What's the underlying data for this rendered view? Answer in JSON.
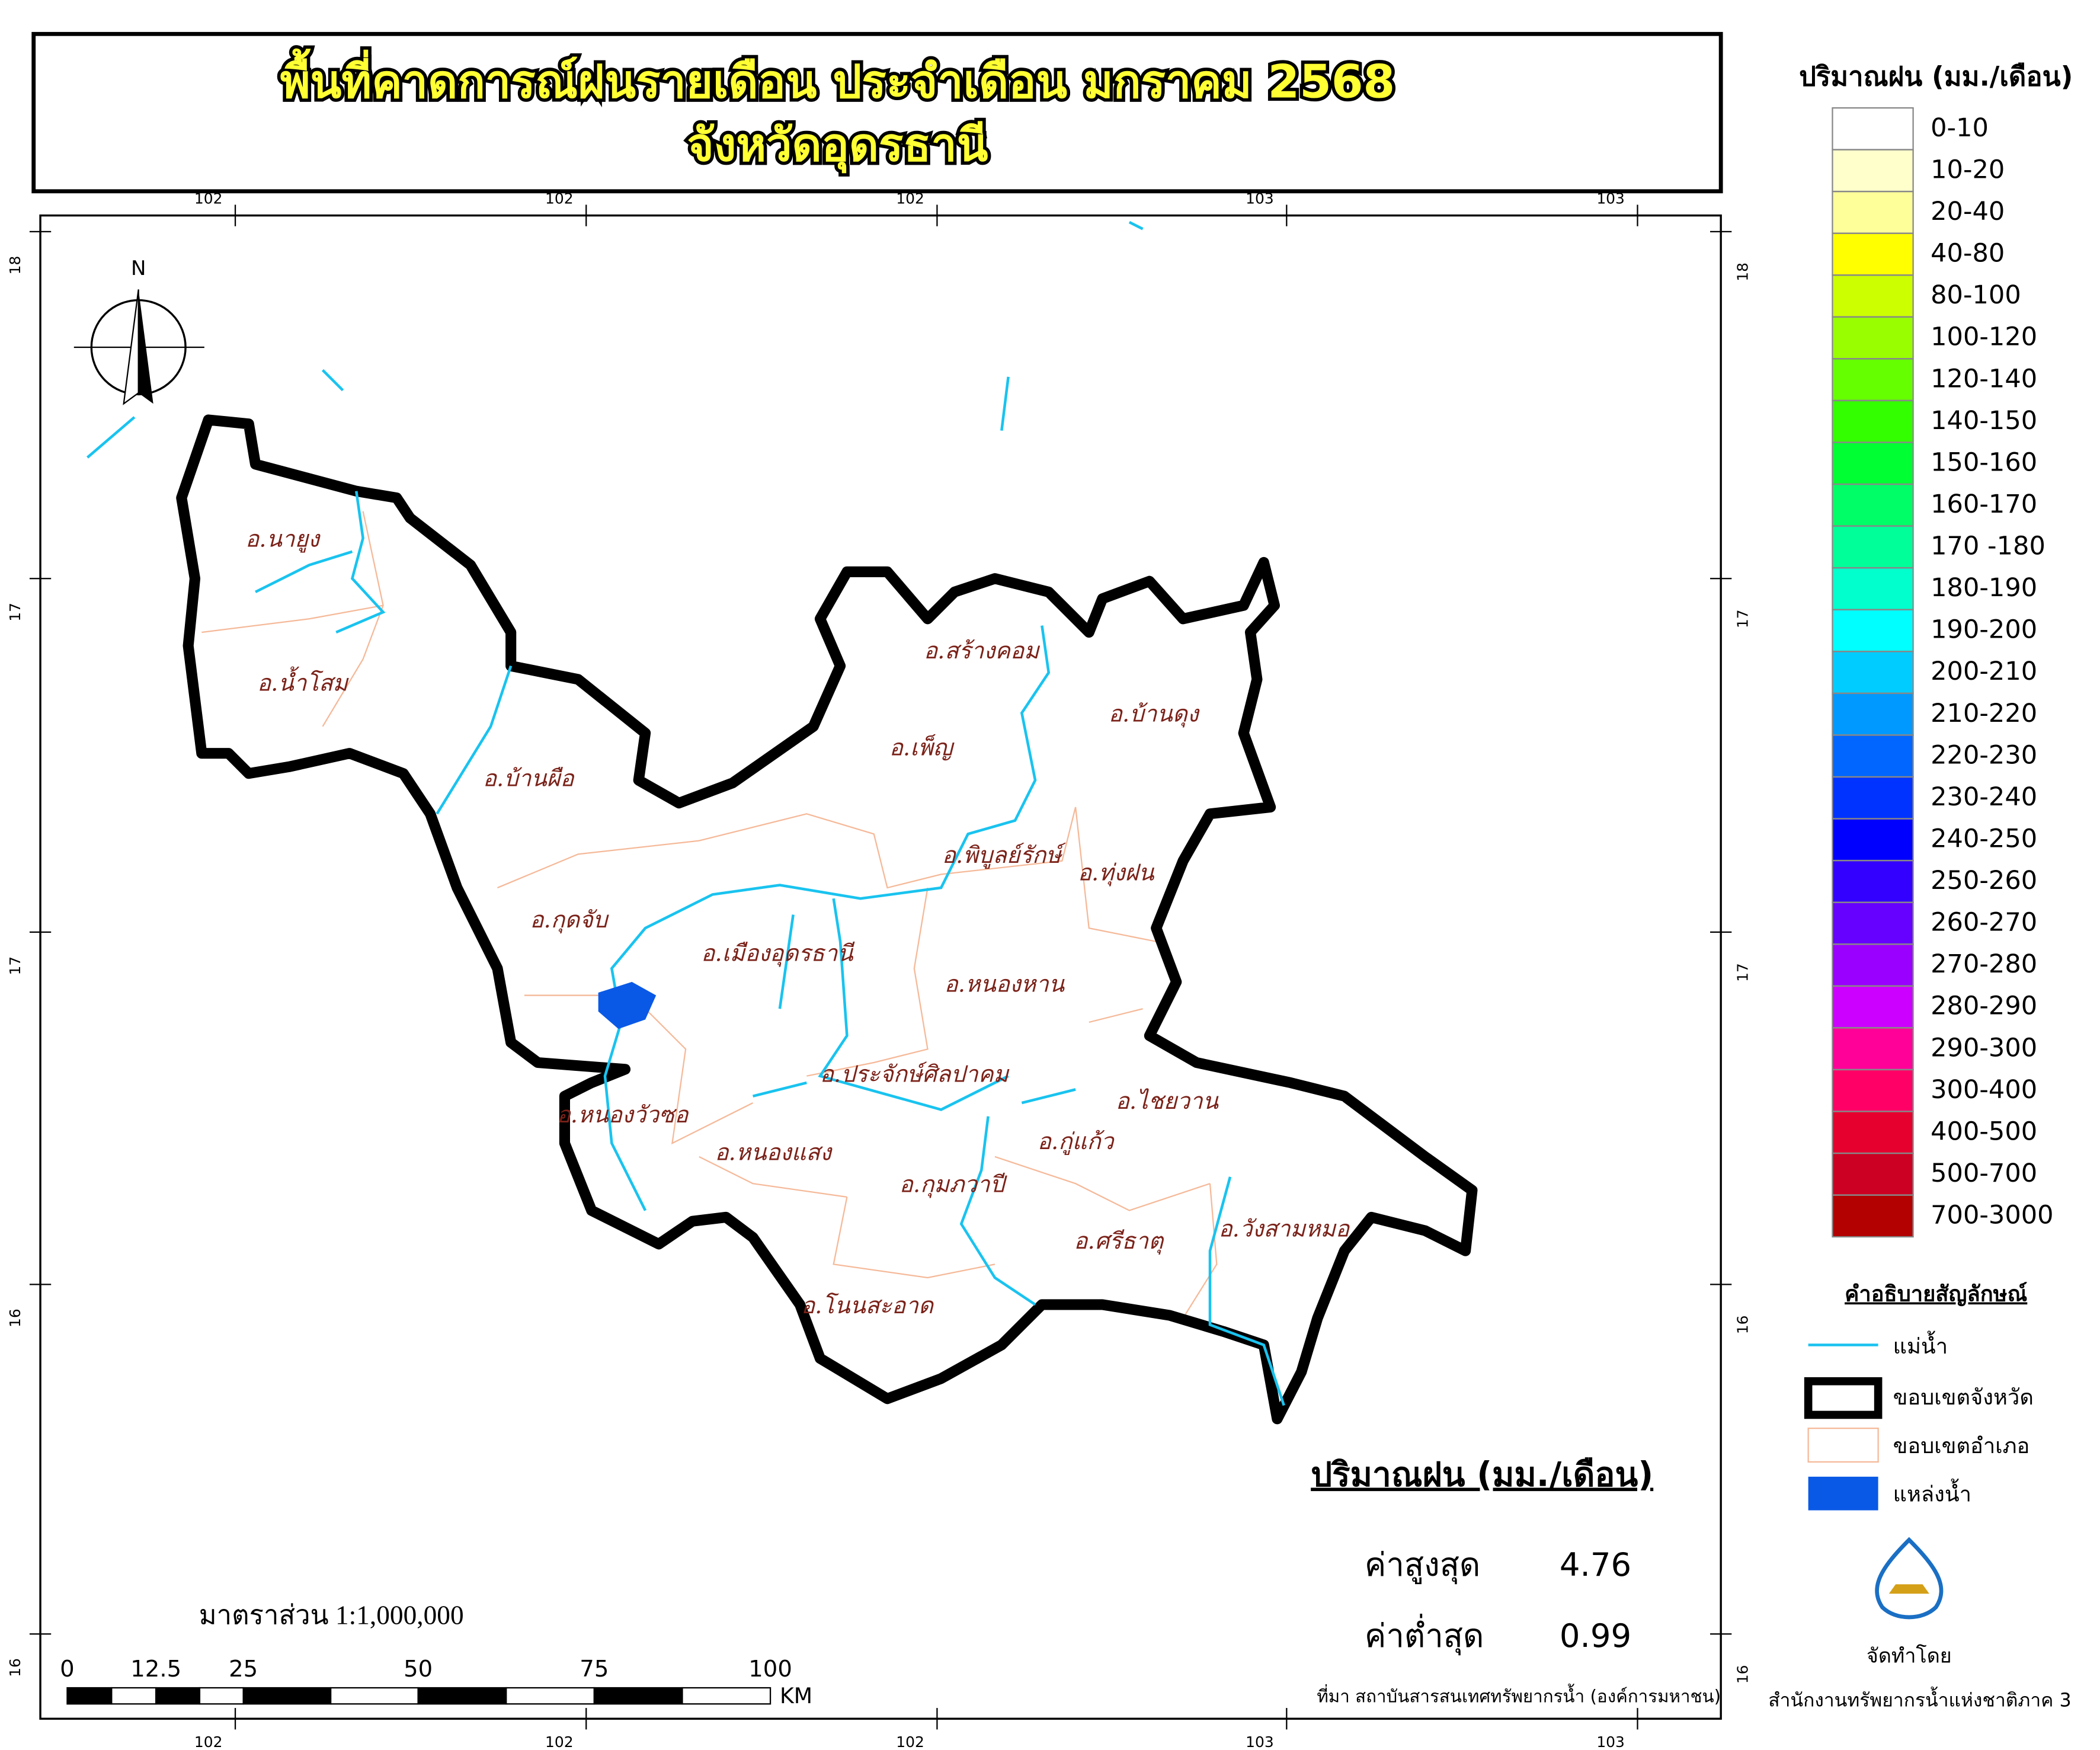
{
  "header": {
    "title_line1": "พื้นที่คาดการณ์ฝนรายเดือน ประจำเดือน มกราคม 2568",
    "title_line2": "จังหวัดอุดรธานี"
  },
  "graticule": {
    "top": [
      "102",
      "102",
      "102",
      "103",
      "103"
    ],
    "bottom": [
      "102",
      "102",
      "102",
      "103",
      "103"
    ],
    "left": [
      "18",
      "17",
      "17",
      "16",
      "16"
    ],
    "right": [
      "18",
      "17",
      "17",
      "16",
      "16"
    ]
  },
  "north": "N",
  "districts": [
    "อ.นายูง",
    "อ.น้ำโสม",
    "อ.บ้านผือ",
    "อ.สร้างคอม",
    "อ.เพ็ญ",
    "อ.บ้านดุง",
    "อ.พิบูลย์รักษ์",
    "อ.ทุ่งฝน",
    "อ.กุดจับ",
    "อ.เมืองอุดรธานี",
    "อ.หนองหาน",
    "อ.ประจักษ์ศิลปาคม",
    "อ.ไชยวาน",
    "อ.หนองวัวซอ",
    "อ.กู่แก้ว",
    "อ.หนองแสง",
    "อ.กุมภวาปี",
    "อ.ศรีธาตุ",
    "อ.วังสามหมอ",
    "อ.โนนสะอาด"
  ],
  "rain_legend": {
    "title": "ปริมาณฝน (มม./เดือน)",
    "items": [
      {
        "label": "0-10",
        "color": "#ffffff"
      },
      {
        "label": "10-20",
        "color": "#ffffcc"
      },
      {
        "label": "20-40",
        "color": "#ffff99"
      },
      {
        "label": "40-80",
        "color": "#ffff00"
      },
      {
        "label": "80-100",
        "color": "#ccff00"
      },
      {
        "label": "100-120",
        "color": "#99ff00"
      },
      {
        "label": "120-140",
        "color": "#66ff00"
      },
      {
        "label": "140-150",
        "color": "#33ff00"
      },
      {
        "label": "150-160",
        "color": "#00ff33"
      },
      {
        "label": "160-170",
        "color": "#00ff66"
      },
      {
        "label": "170 -180",
        "color": "#00ff99"
      },
      {
        "label": "180-190",
        "color": "#00ffcc"
      },
      {
        "label": "190-200",
        "color": "#00ffff"
      },
      {
        "label": "200-210",
        "color": "#00ccff"
      },
      {
        "label": "210-220",
        "color": "#0099ff"
      },
      {
        "label": "220-230",
        "color": "#0066ff"
      },
      {
        "label": "230-240",
        "color": "#0033ff"
      },
      {
        "label": "240-250",
        "color": "#0000ff"
      },
      {
        "label": "250-260",
        "color": "#3300ff"
      },
      {
        "label": "260-270",
        "color": "#6600ff"
      },
      {
        "label": "270-280",
        "color": "#9900ff"
      },
      {
        "label": "280-290",
        "color": "#cc00ff"
      },
      {
        "label": "290-300",
        "color": "#ff0099"
      },
      {
        "label": "300-400",
        "color": "#ff0066"
      },
      {
        "label": "400-500",
        "color": "#e6002e"
      },
      {
        "label": "500-700",
        "color": "#cc0022"
      },
      {
        "label": "700-3000",
        "color": "#b30000"
      }
    ]
  },
  "symbol_legend": {
    "title": "คำอธิบายสัญลักษณ์",
    "items": [
      "แม่น้ำ",
      "ขอบเขตจังหวัด",
      "ขอบเขตอำเภอ",
      "แหล่งน้ำ"
    ]
  },
  "stats": {
    "title": "ปริมาณฝน (มม./เดือน)",
    "max_label": "ค่าสูงสุด",
    "max_value": "4.76",
    "min_label": "ค่าต่ำสุด",
    "min_value": "0.99"
  },
  "scale": {
    "text": "มาตราส่วน 1:1,000,000",
    "labels": [
      "0",
      "12.5",
      "25",
      "50",
      "75",
      "100"
    ],
    "unit": "KM"
  },
  "source": "ที่มา  สถาบันสารสนเทศทรัพยากรน้ำ (องค์การมหาชน)",
  "credit": {
    "by": "จัดทำโดย",
    "org": "สำนักงานทรัพยากรน้ำแห่งชาติภาค 3"
  }
}
